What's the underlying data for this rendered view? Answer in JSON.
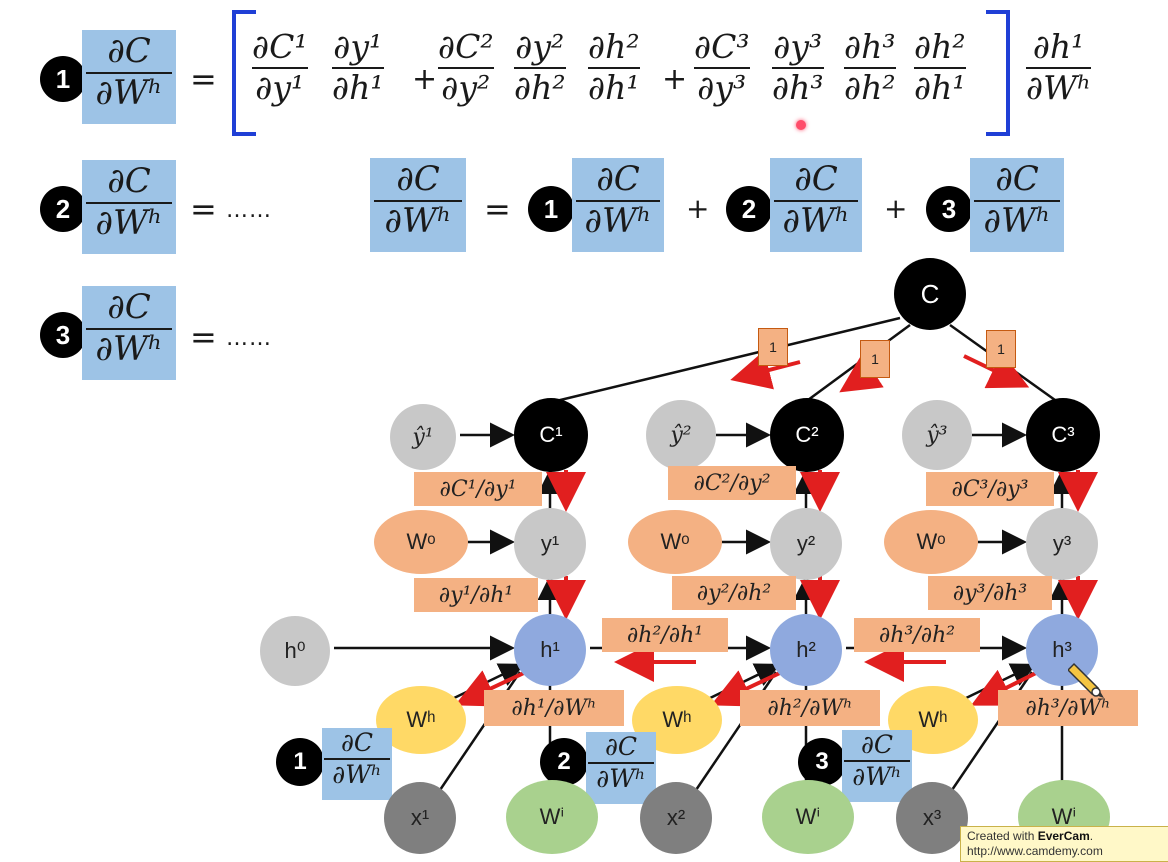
{
  "formula_row1": {
    "badge": "1",
    "lhs_num": "∂C",
    "lhs_den": "∂Wʰ",
    "equals": "=",
    "t1": [
      [
        "∂C¹",
        "∂y¹"
      ],
      [
        "∂y¹",
        "∂h¹"
      ]
    ],
    "plus1": "+",
    "t2": [
      [
        "∂C²",
        "∂y²"
      ],
      [
        "∂y²",
        "∂h²"
      ],
      [
        "∂h²",
        "∂h¹"
      ]
    ],
    "plus2": "+",
    "t3": [
      [
        "∂C³",
        "∂y³"
      ],
      [
        "∂y³",
        "∂h³"
      ],
      [
        "∂h³",
        "∂h²"
      ],
      [
        "∂h²",
        "∂h¹"
      ]
    ],
    "tail": [
      "∂h¹",
      "∂Wʰ"
    ]
  },
  "formula_row2": {
    "badge": "2",
    "lhs_num": "∂C",
    "lhs_den": "∂Wʰ",
    "equals": "=",
    "dots": "……",
    "sum_lhs_num": "∂C",
    "sum_lhs_den": "∂Wʰ",
    "sum_equals": "=",
    "sum_badges": [
      "1",
      "2",
      "3"
    ],
    "sum_plus": "+"
  },
  "formula_row3": {
    "badge": "3",
    "lhs_num": "∂C",
    "lhs_den": "∂Wʰ",
    "equals": "=",
    "dots": "……"
  },
  "graph": {
    "cost": "C",
    "costs": [
      "C¹",
      "C²",
      "C³"
    ],
    "targets": [
      "ŷ¹",
      "ŷ²",
      "ŷ³"
    ],
    "outputs": [
      "y¹",
      "y²",
      "y³"
    ],
    "hidden": [
      "h¹",
      "h²",
      "h³"
    ],
    "h0": "h⁰",
    "wo": "Wᵒ",
    "wh": "Wʰ",
    "wi": "Wⁱ",
    "inputs": [
      "x¹",
      "x²",
      "x³"
    ],
    "one": "1",
    "dC_dy": [
      "∂C¹/∂y¹",
      "∂C²/∂y²",
      "∂C³/∂y³"
    ],
    "dy_dh": [
      "∂y¹/∂h¹",
      "∂y²/∂h²",
      "∂y³/∂h³"
    ],
    "dh_dh": [
      "∂h²/∂h¹",
      "∂h³/∂h²"
    ],
    "dh_dW": [
      "∂h¹/∂Wʰ",
      "∂h²/∂Wʰ",
      "∂h³/∂Wʰ"
    ],
    "bottom_badges": [
      "1",
      "2",
      "3"
    ],
    "bottom_num": "∂C",
    "bottom_den": "∂Wʰ"
  },
  "watermark": {
    "line1_pre": "Created with ",
    "line1_brand": "EverCam",
    "line1_post": ".",
    "line2": "http://www.camdemy.com"
  },
  "colors": {
    "node_black": "#000000",
    "node_gray": "#c8c8c8",
    "node_blue": "#8fa9de",
    "node_orange": "#f4b183",
    "node_yellow": "#ffd966",
    "node_green": "#a9d18e",
    "node_dark": "#7f7f7f",
    "label_fill": "#f4b183",
    "highlight": "#9dc3e6",
    "bracket": "#1f3fd6",
    "arrow_red": "#e11f1f"
  }
}
